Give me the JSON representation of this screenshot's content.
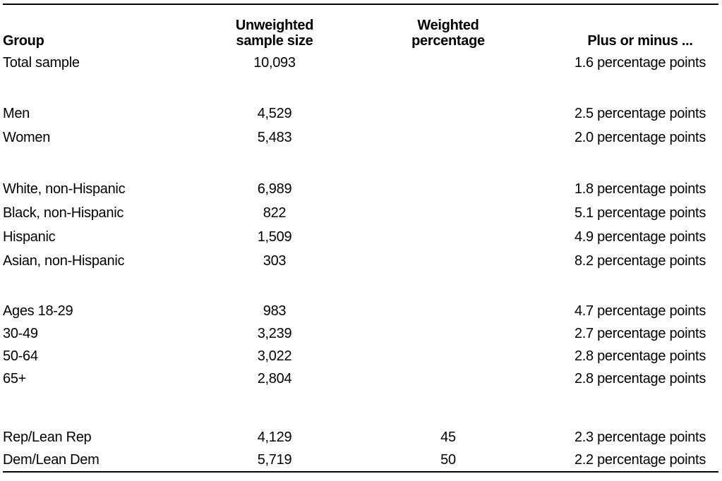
{
  "page": {
    "background": "#ffffff",
    "rule_color": "#000000",
    "text_color": "#000000"
  },
  "chart_data": {
    "type": "table",
    "columns": [
      "Group",
      "Unweighted sample size",
      "Weighted percentage",
      "Plus or minus ..."
    ],
    "header_display": {
      "group": "Group",
      "unweighted": "Unweighted\nsample size",
      "weighted": "Weighted\npercentage",
      "moe": "Plus or minus ..."
    },
    "rows": [
      {
        "group": "Total sample",
        "unweighted": "10,093",
        "weighted": "",
        "moe": "1.6 percentage points"
      },
      {
        "group": "Men",
        "unweighted": "4,529",
        "weighted": "",
        "moe": "2.5 percentage points"
      },
      {
        "group": "Women",
        "unweighted": "5,483",
        "weighted": "",
        "moe": "2.0 percentage points"
      },
      {
        "group": "White, non-Hispanic",
        "unweighted": "6,989",
        "weighted": "",
        "moe": "1.8 percentage points"
      },
      {
        "group": "Black, non-Hispanic",
        "unweighted": "822",
        "weighted": "",
        "moe": "5.1 percentage points"
      },
      {
        "group": "Hispanic",
        "unweighted": "1,509",
        "weighted": "",
        "moe": "4.9 percentage points"
      },
      {
        "group": "Asian, non-Hispanic",
        "unweighted": "303",
        "weighted": "",
        "moe": "8.2 percentage points"
      },
      {
        "group": "Ages 18-29",
        "unweighted": "983",
        "weighted": "",
        "moe": "4.7 percentage points"
      },
      {
        "group": "30-49",
        "unweighted": "3,239",
        "weighted": "",
        "moe": "2.7 percentage points"
      },
      {
        "group": "50-64",
        "unweighted": "3,022",
        "weighted": "",
        "moe": "2.8 percentage points"
      },
      {
        "group": "65+",
        "unweighted": "2,804",
        "weighted": "",
        "moe": "2.8 percentage points"
      },
      {
        "group": "Rep/Lean Rep",
        "unweighted": "4,129",
        "weighted": "45",
        "moe": "2.3 percentage points"
      },
      {
        "group": "Dem/Lean Dem",
        "unweighted": "5,719",
        "weighted": "50",
        "moe": "2.2 percentage points"
      }
    ]
  }
}
